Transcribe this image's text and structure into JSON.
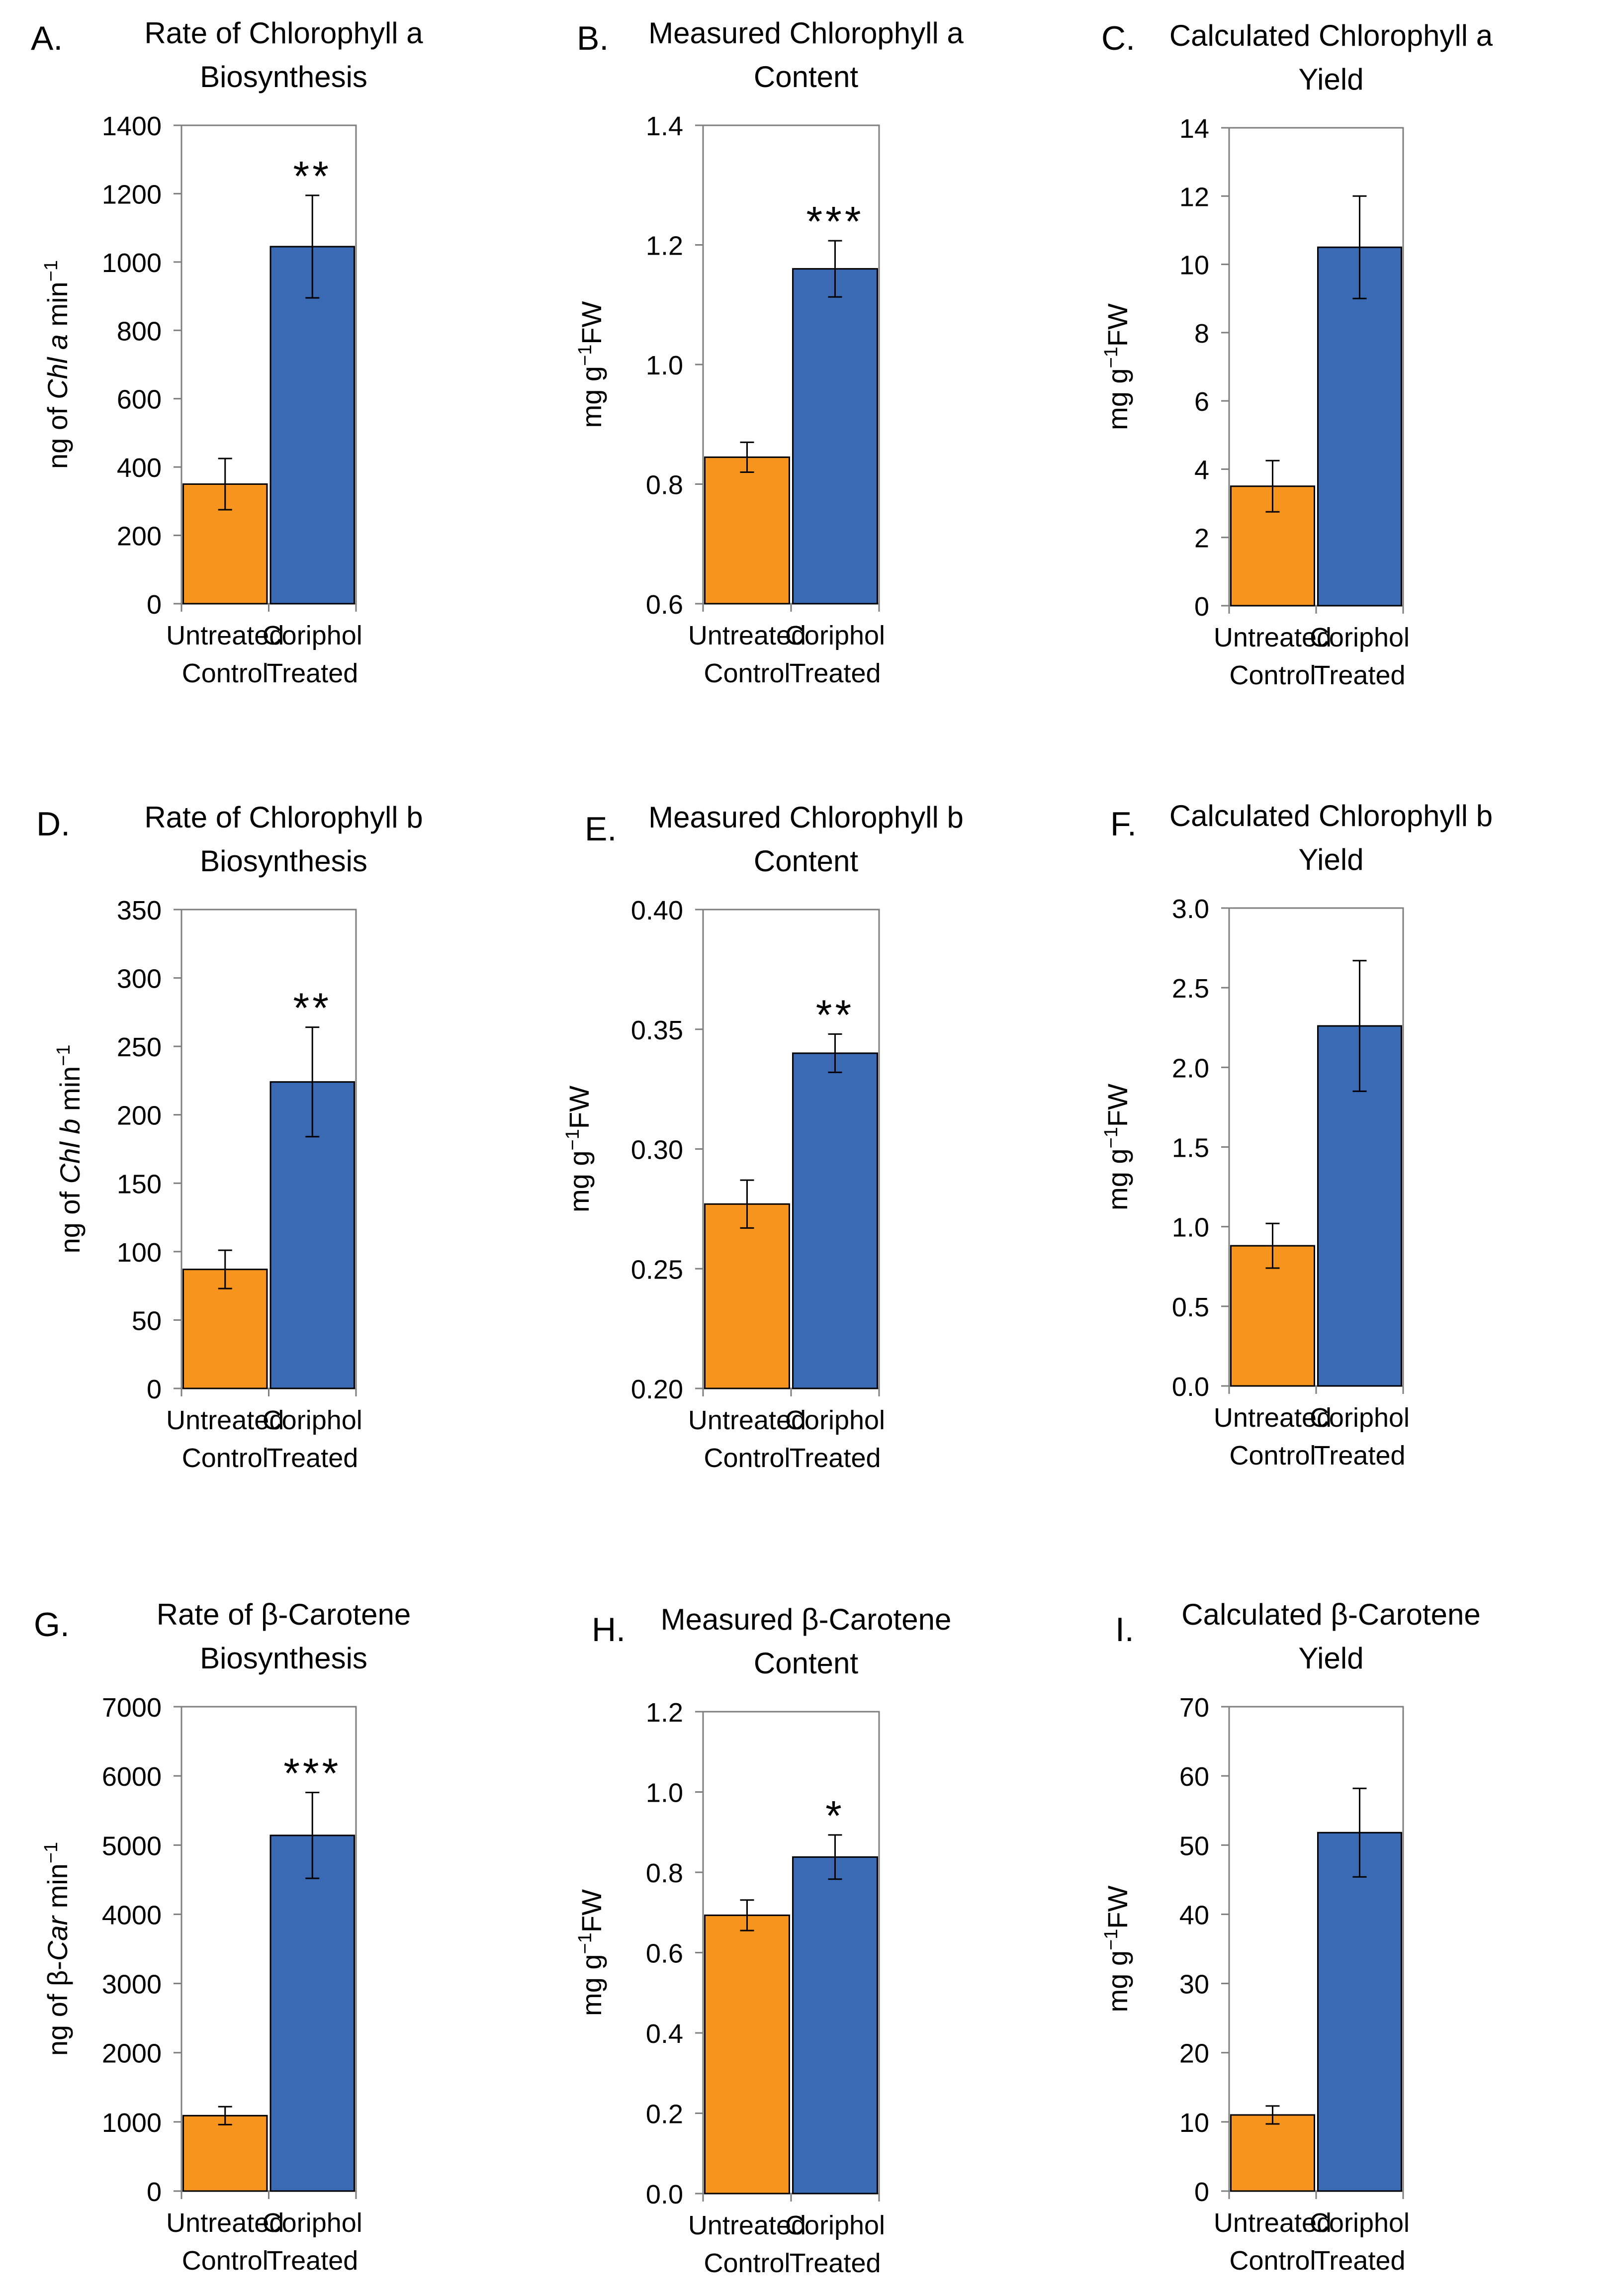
{
  "figure": {
    "colors": {
      "control": "#F7941D",
      "treated": "#3A6AB4",
      "axis": "#7F7F7F",
      "error": "#000000"
    }
  },
  "chart_data": [
    {
      "panel_label": "A.",
      "type": "bar",
      "title_lines": [
        "Rate of Chlorophyll a",
        "Biosynthesis"
      ],
      "ylabel": [
        {
          "t": "ng of "
        },
        {
          "t": "Chl a",
          "it": true
        },
        {
          "t": " min"
        },
        {
          "t": "−1",
          "sup": true
        }
      ],
      "categories": [
        [
          "Untreated",
          "Control"
        ],
        [
          "Coriphol",
          "Treated"
        ]
      ],
      "values": [
        350,
        1045
      ],
      "errors": [
        75,
        150
      ],
      "significance": [
        "",
        "**"
      ],
      "ylim": [
        0,
        1400
      ],
      "yticks": [
        "0",
        "200",
        "400",
        "600",
        "800",
        "1000",
        "1200",
        "1400"
      ]
    },
    {
      "panel_label": "B.",
      "type": "bar",
      "title_lines": [
        "Measured Chlorophyll a",
        "Content"
      ],
      "ylabel": [
        {
          "t": "mg g"
        },
        {
          "t": "−1",
          "sup": true
        },
        {
          "t": "FW"
        }
      ],
      "categories": [
        [
          "Untreated",
          "Control"
        ],
        [
          "Coriphol",
          "Treated"
        ]
      ],
      "values": [
        0.845,
        1.16
      ],
      "errors": [
        0.025,
        0.047
      ],
      "significance": [
        "",
        "***"
      ],
      "ylim": [
        0.6,
        1.4
      ],
      "yticks": [
        "0.6",
        "0.8",
        "1.0",
        "1.2",
        "1.4"
      ]
    },
    {
      "panel_label": "C.",
      "type": "bar",
      "title_lines": [
        "Calculated Chlorophyll a",
        "Yield"
      ],
      "ylabel": [
        {
          "t": "mg g"
        },
        {
          "t": "−1",
          "sup": true
        },
        {
          "t": "FW"
        }
      ],
      "categories": [
        [
          "Untreated",
          "Control"
        ],
        [
          "Coriphol",
          "Treated"
        ]
      ],
      "values": [
        3.5,
        10.5
      ],
      "errors": [
        0.75,
        1.5
      ],
      "significance": [
        "",
        ""
      ],
      "ylim": [
        0,
        14
      ],
      "yticks": [
        "0",
        "2",
        "4",
        "6",
        "8",
        "10",
        "12",
        "14"
      ]
    },
    {
      "panel_label": "D.",
      "type": "bar",
      "title_lines": [
        "Rate of Chlorophyll b",
        "Biosynthesis"
      ],
      "ylabel": [
        {
          "t": "ng of  "
        },
        {
          "t": "Chl b",
          "it": true
        },
        {
          "t": " min"
        },
        {
          "t": "−1",
          "sup": true
        }
      ],
      "categories": [
        [
          "Untreated",
          "Control"
        ],
        [
          "Coriphol",
          "Treated"
        ]
      ],
      "values": [
        87,
        224
      ],
      "errors": [
        14,
        40
      ],
      "significance": [
        "",
        "**"
      ],
      "ylim": [
        0,
        350
      ],
      "yticks": [
        "0",
        "50",
        "100",
        "150",
        "200",
        "250",
        "300",
        "350"
      ]
    },
    {
      "panel_label": "E.",
      "type": "bar",
      "title_lines": [
        "Measured Chlorophyll b",
        "Content"
      ],
      "ylabel": [
        {
          "t": "mg g"
        },
        {
          "t": "−1",
          "sup": true
        },
        {
          "t": "FW"
        }
      ],
      "categories": [
        [
          "Untreated",
          "Control"
        ],
        [
          "Coriphol",
          "Treated"
        ]
      ],
      "values": [
        0.277,
        0.34
      ],
      "errors": [
        0.01,
        0.008
      ],
      "significance": [
        "",
        "**"
      ],
      "ylim": [
        0.2,
        0.4
      ],
      "yticks": [
        "0.20",
        "0.25",
        "0.30",
        "0.35",
        "0.40"
      ]
    },
    {
      "panel_label": "F.",
      "type": "bar",
      "title_lines": [
        "Calculated Chlorophyll b",
        "Yield"
      ],
      "ylabel": [
        {
          "t": "mg g"
        },
        {
          "t": "−1",
          "sup": true
        },
        {
          "t": "FW"
        }
      ],
      "categories": [
        [
          "Untreated",
          "Control"
        ],
        [
          "Coriphol",
          "Treated"
        ]
      ],
      "values": [
        0.88,
        2.26
      ],
      "errors": [
        0.14,
        0.41
      ],
      "significance": [
        "",
        ""
      ],
      "ylim": [
        0,
        3
      ],
      "yticks": [
        "0.0",
        "0.5",
        "1.0",
        "1.5",
        "2.0",
        "2.5",
        "3.0"
      ]
    },
    {
      "panel_label": "G.",
      "type": "bar",
      "title_lines": [
        "Rate of β-Carotene",
        "Biosynthesis"
      ],
      "ylabel": [
        {
          "t": "ng of  β-"
        },
        {
          "t": "Car",
          "it": true
        },
        {
          "t": " min"
        },
        {
          "t": "−1",
          "sup": true
        }
      ],
      "categories": [
        [
          "Untreated",
          "Control"
        ],
        [
          "Coriphol",
          "Treated"
        ]
      ],
      "values": [
        1090,
        5140
      ],
      "errors": [
        130,
        620
      ],
      "significance": [
        "",
        "***"
      ],
      "ylim": [
        0,
        7000
      ],
      "yticks": [
        "0",
        "1000",
        "2000",
        "3000",
        "4000",
        "5000",
        "6000",
        "7000"
      ]
    },
    {
      "panel_label": "H.",
      "type": "bar",
      "title_lines": [
        "Measured β-Carotene",
        "Content"
      ],
      "ylabel": [
        {
          "t": "mg g"
        },
        {
          "t": "−1",
          "sup": true
        },
        {
          "t": "FW"
        }
      ],
      "categories": [
        [
          "Untreated",
          "Control"
        ],
        [
          "Coriphol",
          "Treated"
        ]
      ],
      "values": [
        0.693,
        0.838
      ],
      "errors": [
        0.038,
        0.055
      ],
      "significance": [
        "",
        "*"
      ],
      "ylim": [
        0,
        1.2
      ],
      "yticks": [
        "0.0",
        "0.2",
        "0.4",
        "0.6",
        "0.8",
        "1.0",
        "1.2"
      ]
    },
    {
      "panel_label": "I.",
      "type": "bar",
      "title_lines": [
        "Calculated β-Carotene",
        "Yield"
      ],
      "ylabel": [
        {
          "t": "mg g"
        },
        {
          "t": "−1",
          "sup": true
        },
        {
          "t": "FW"
        }
      ],
      "categories": [
        [
          "Untreated",
          "Control"
        ],
        [
          "Coriphol",
          "Treated"
        ]
      ],
      "values": [
        11,
        51.8
      ],
      "errors": [
        1.3,
        6.4
      ],
      "significance": [
        "",
        ""
      ],
      "ylim": [
        0,
        70
      ],
      "yticks": [
        "0",
        "10",
        "20",
        "30",
        "40",
        "50",
        "60",
        "70"
      ]
    }
  ]
}
